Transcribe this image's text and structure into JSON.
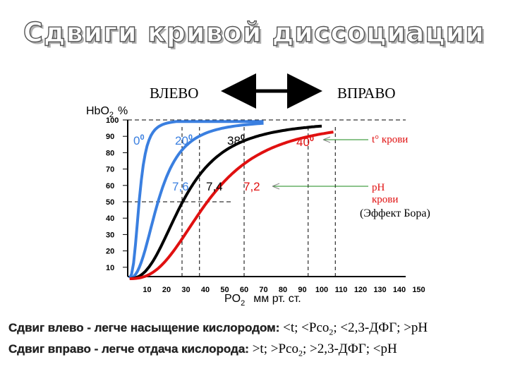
{
  "title": "Сдвиги кривой диссоциации",
  "shift_left_label": "ВЛЕВО",
  "shift_right_label": "ВПРАВО",
  "y_axis_label": "HbO",
  "y_axis_label_sub": "2",
  "y_axis_unit": "%",
  "x_axis_label": "PO",
  "x_axis_label_sub": "2",
  "x_axis_unit": "мм рт. ст.",
  "y_ticks": [
    100,
    90,
    80,
    70,
    60,
    50,
    40,
    30,
    20,
    10
  ],
  "x_ticks": [
    10,
    20,
    30,
    40,
    50,
    60,
    70,
    80,
    90,
    100,
    110,
    120,
    130,
    140,
    150
  ],
  "curve_labels": {
    "t0": "0",
    "t20": "20",
    "t38": "38",
    "t40": "40",
    "degree_sign": "0",
    "ph76": "7,6",
    "ph74": "7,4",
    "ph72": "7,2"
  },
  "annotations": {
    "temperature": "t° крови",
    "ph_line1": "pH",
    "ph_line2": "крови",
    "bohr_effect": "(Эффект Бора)"
  },
  "colors": {
    "curve_leftmost": "#3a7fe0",
    "curve_left": "#3a7fe0",
    "curve_normal": "#000000",
    "curve_right": "#e01010",
    "temp_label": "#e01010",
    "ph_label": "#e01010",
    "pointer_line": "#1a8a1a"
  },
  "captions": {
    "left_shift_sans": "Сдвиг влево - легче насыщение кислородом:",
    "left_shift_serif": " <t; <Pco",
    "left_shift_sub": "2",
    "left_shift_rest": "; <2,3-ДФГ; >pH",
    "right_shift_sans": "Сдвиг вправо - легче отдача кислорода:",
    "right_shift_serif": " >t; >Pco",
    "right_shift_sub": "2",
    "right_shift_rest": "; >2,3-ДФГ; <pH"
  }
}
